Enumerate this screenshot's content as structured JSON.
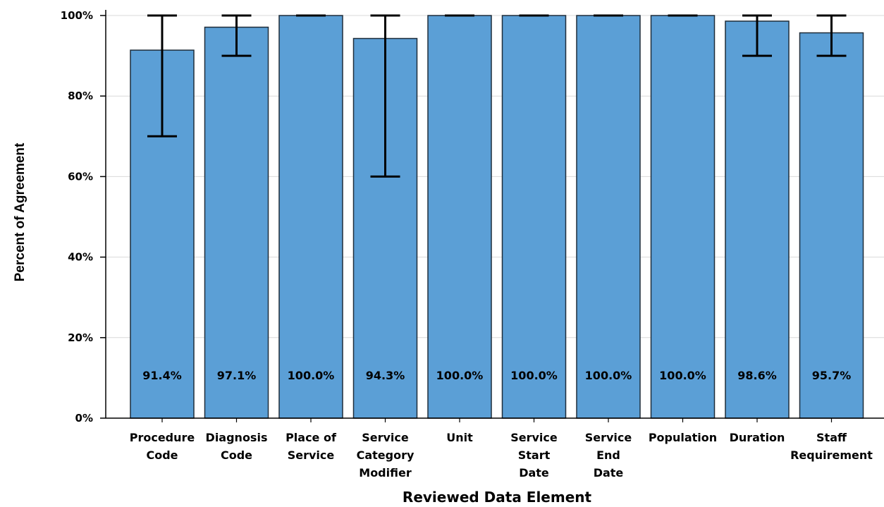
{
  "chart_data": {
    "type": "bar",
    "categories": [
      [
        "Procedure",
        "Code"
      ],
      [
        "Diagnosis",
        "Code"
      ],
      [
        "Place of",
        "Service"
      ],
      [
        "Service",
        "Category",
        "Modifier"
      ],
      [
        "Unit"
      ],
      [
        "Service",
        "Start",
        "Date"
      ],
      [
        "Service",
        "End",
        "Date"
      ],
      [
        "Population"
      ],
      [
        "Duration"
      ],
      [
        "Staff",
        "Requirement"
      ]
    ],
    "values": [
      91.4,
      97.1,
      100.0,
      94.3,
      100.0,
      100.0,
      100.0,
      100.0,
      98.6,
      95.7
    ],
    "value_labels": [
      "91.4%",
      "97.1%",
      "100.0%",
      "94.3%",
      "100.0%",
      "100.0%",
      "100.0%",
      "100.0%",
      "98.6%",
      "95.7%"
    ],
    "error_low": [
      70,
      90,
      100,
      60,
      100,
      100,
      100,
      100,
      90,
      90
    ],
    "error_high": [
      100,
      100,
      100,
      100,
      100,
      100,
      100,
      100,
      100,
      100
    ],
    "xlabel": "Reviewed Data Element",
    "ylabel": "Percent of Agreement",
    "ylim": [
      0,
      100
    ],
    "yticks": [
      0,
      20,
      40,
      60,
      80,
      100
    ],
    "ytick_labels": [
      "0%",
      "20%",
      "40%",
      "60%",
      "80%",
      "100%"
    ],
    "grid": true,
    "colors": {
      "bar": "#5b9fd6",
      "bar_edge": "#1f2d3a",
      "error_bar": "#000000"
    }
  }
}
